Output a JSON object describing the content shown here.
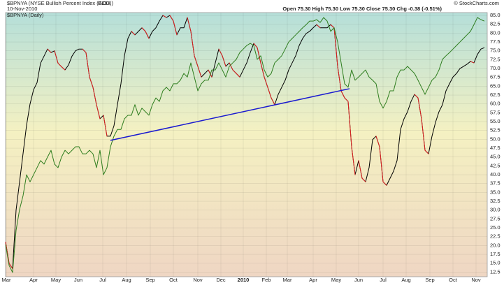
{
  "header": {
    "title": "$BPNYA (NYSE Bullish Percent Index (EOD))",
    "exchange": "INDX",
    "date": "10-Nov-2010",
    "quote": "Open 75.30  High 75.30  Low 75.30  Close 75.30  Chg -0.38 (-0.51%)",
    "credit": "© StockCharts.com"
  },
  "chart_data": {
    "type": "line",
    "xlim": [
      0,
      137.8
    ],
    "xticks": [
      {
        "value": 0.2,
        "label": "Mar"
      },
      {
        "value": 8,
        "label": "Apr"
      },
      {
        "value": 14.4,
        "label": "May"
      },
      {
        "value": 20.8,
        "label": "Jun"
      },
      {
        "value": 27.8,
        "label": "Jul"
      },
      {
        "value": 34.6,
        "label": "Aug"
      },
      {
        "value": 41.4,
        "label": "Sep"
      },
      {
        "value": 48,
        "label": "Oct"
      },
      {
        "value": 55,
        "label": "Nov"
      },
      {
        "value": 61.6,
        "label": "Dec"
      },
      {
        "value": 68,
        "label": "2010"
      },
      {
        "value": 74.6,
        "label": "Feb"
      },
      {
        "value": 80.6,
        "label": "Mar"
      },
      {
        "value": 88,
        "label": "Apr"
      },
      {
        "value": 94.6,
        "label": "May"
      },
      {
        "value": 101,
        "label": "Jun"
      },
      {
        "value": 108,
        "label": "Jul"
      },
      {
        "value": 114.6,
        "label": "Aug"
      },
      {
        "value": 121.4,
        "label": "Sep"
      },
      {
        "value": 128,
        "label": "Oct"
      },
      {
        "value": 134.6,
        "label": "Nov"
      }
    ],
    "ylim": [
      11.2,
      85.8
    ],
    "yticks": [
      {
        "value": 12.5,
        "label": "12.5"
      },
      {
        "value": 15,
        "label": "15.0"
      },
      17.5,
      {
        "value": 20,
        "label": "20.0"
      },
      22.5,
      {
        "value": 25,
        "label": "25.0"
      },
      27.5,
      {
        "value": 30,
        "label": "30.0"
      },
      32.5,
      {
        "value": 35,
        "label": "35.0"
      },
      37.5,
      {
        "value": 40,
        "label": "40.0"
      },
      42.5,
      {
        "value": 45,
        "label": "45.0"
      },
      47.5,
      {
        "value": 50,
        "label": "50.0"
      },
      52.5,
      {
        "value": 55,
        "label": "55.0"
      },
      57.5,
      {
        "value": 60,
        "label": "60.0"
      },
      62.5,
      {
        "value": 65,
        "label": "65.0"
      },
      67.5,
      {
        "value": 70,
        "label": "70.0"
      },
      72.5,
      {
        "value": 75,
        "label": "75.0"
      },
      77.5,
      {
        "value": 80,
        "label": "80.0"
      },
      82.5,
      {
        "value": 85,
        "label": "85.0"
      }
    ],
    "grid": true,
    "series": [
      {
        "name": "$BPNYA (Daily)",
        "color": "#000000",
        "down_color": "#e02020",
        "values": [
          21,
          15,
          13.5,
          30,
          38,
          46,
          54,
          60,
          64,
          66,
          71.5,
          73.5,
          75.5,
          74.5,
          75,
          71.5,
          70.5,
          69.6,
          71,
          73.5,
          75,
          75.5,
          75.5,
          74.5,
          67.6,
          64.7,
          59.8,
          55.8,
          56.8,
          50.9,
          50.9,
          53.8,
          59.8,
          65.7,
          73.6,
          78.5,
          80.5,
          79.5,
          80.5,
          81.5,
          80.5,
          78.5,
          80.5,
          81.5,
          83.4,
          85,
          84.4,
          85,
          83.4,
          79.5,
          81.5,
          81.5,
          84.4,
          80.5,
          73.6,
          70.6,
          67.6,
          68.6,
          69.6,
          67.6,
          71.6,
          75.5,
          73.6,
          70.6,
          71.6,
          69.6,
          68.6,
          67.6,
          69.6,
          71.6,
          74.5,
          77.1,
          75.9,
          71.6,
          67.6,
          64.7,
          61.7,
          59.8,
          62.7,
          64.7,
          66.7,
          69.6,
          71.6,
          73.6,
          76.5,
          78.5,
          79.9,
          80.5,
          81.5,
          82.4,
          81.5,
          81.5,
          81.5,
          82.4,
          81.5,
          70.6,
          63.7,
          61.7,
          60.7,
          47.9,
          40,
          44,
          39,
          38,
          42,
          49.9,
          50.9,
          47.9,
          38,
          37,
          39,
          41,
          44,
          52.8,
          55.8,
          57.8,
          60.7,
          62.7,
          61.7,
          55.8,
          46.9,
          45.9,
          50.9,
          54.8,
          57.8,
          59.8,
          63.7,
          65.7,
          67.6,
          68.6,
          70,
          70.6,
          71.2,
          72,
          71.6,
          74,
          75.5,
          75.9
        ]
      },
      {
        "color": "#2e7d1e",
        "values": [
          20.3,
          14.4,
          12.4,
          24.3,
          30.2,
          34.1,
          40,
          38,
          40,
          42,
          44,
          43,
          45,
          46.9,
          43,
          42,
          45,
          46.9,
          45.9,
          46.9,
          47.9,
          47.9,
          45.9,
          45.9,
          46.9,
          45.9,
          42,
          46.9,
          40,
          42,
          47.9,
          50.9,
          52.8,
          52.8,
          55.8,
          56.8,
          56.8,
          59.8,
          56.8,
          58.8,
          57.8,
          56.8,
          59.8,
          61.7,
          60.7,
          63.7,
          64.7,
          63.7,
          65.7,
          65.7,
          66.7,
          68.6,
          67.6,
          71.6,
          67.6,
          63.7,
          65.7,
          66.7,
          66.7,
          69.6,
          69.6,
          71.6,
          69.6,
          67.6,
          70.6,
          71.6,
          72.6,
          74.5,
          75.5,
          76.5,
          77.1,
          76.5,
          72.6,
          73.6,
          69.6,
          67.6,
          68.6,
          71.6,
          72.6,
          73.6,
          75.5,
          77.5,
          78.5,
          79.5,
          80.5,
          81.5,
          82.4,
          83.4,
          83.4,
          83.8,
          83,
          84.4,
          83.4,
          80.5,
          81.5,
          77.5,
          71.6,
          65.7,
          64.7,
          69.6,
          66.7,
          67.6,
          68.6,
          69.6,
          67.6,
          66.7,
          65.7,
          60.7,
          58.8,
          60.7,
          63.7,
          63.7,
          67.6,
          69.6,
          69.6,
          70.6,
          69.6,
          68.6,
          66.7,
          64.7,
          62.7,
          64.7,
          66.7,
          67.6,
          69.6,
          72.6,
          73.6,
          74.5,
          75.5,
          76.5,
          77.5,
          78.5,
          79.5,
          80.5,
          82.4,
          84.4,
          83.8,
          83.4
        ]
      }
    ],
    "trendline": {
      "start": [
        30,
        49.7
      ],
      "end": [
        98.4,
        64.3
      ],
      "color": "#1a1ad0"
    }
  }
}
